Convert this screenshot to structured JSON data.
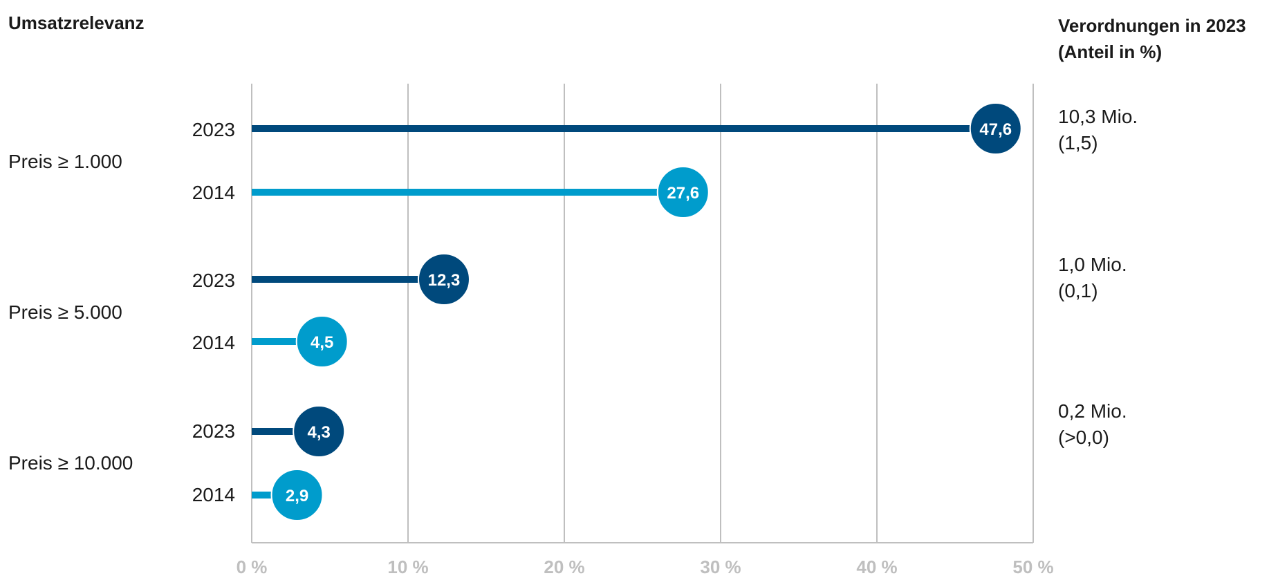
{
  "left_header": "Umsatzrelevanz",
  "right_header": {
    "line1": "Verordnungen in 2023",
    "line2": "(Anteil in %)"
  },
  "colors": {
    "year_2023": "#00497c",
    "year_2014": "#009ccc",
    "grid": "#bfbfbf"
  },
  "chart_data": {
    "type": "bar",
    "orientation": "horizontal",
    "style": "lollipop",
    "xlim": [
      0,
      50
    ],
    "x_ticks": [
      "0 %",
      "10 %",
      "20 %",
      "30 %",
      "40 %",
      "50 %"
    ],
    "grid": true,
    "groups": [
      {
        "label": "Preis ≥ 1.000",
        "annotation": {
          "line1": "10,3 Mio.",
          "line2": "(1,5)"
        },
        "bars": [
          {
            "year": "2023",
            "value": 47.6,
            "label": "47,6"
          },
          {
            "year": "2014",
            "value": 27.6,
            "label": "27,6"
          }
        ]
      },
      {
        "label": "Preis ≥ 5.000",
        "annotation": {
          "line1": "1,0 Mio.",
          "line2": "(0,1)"
        },
        "bars": [
          {
            "year": "2023",
            "value": 12.3,
            "label": "12,3"
          },
          {
            "year": "2014",
            "value": 4.5,
            "label": "4,5"
          }
        ]
      },
      {
        "label": "Preis ≥ 10.000",
        "annotation": {
          "line1": "0,2 Mio.",
          "line2": "(>0,0)"
        },
        "bars": [
          {
            "year": "2023",
            "value": 4.3,
            "label": "4,3"
          },
          {
            "year": "2014",
            "value": 2.9,
            "label": "2,9"
          }
        ]
      }
    ]
  }
}
